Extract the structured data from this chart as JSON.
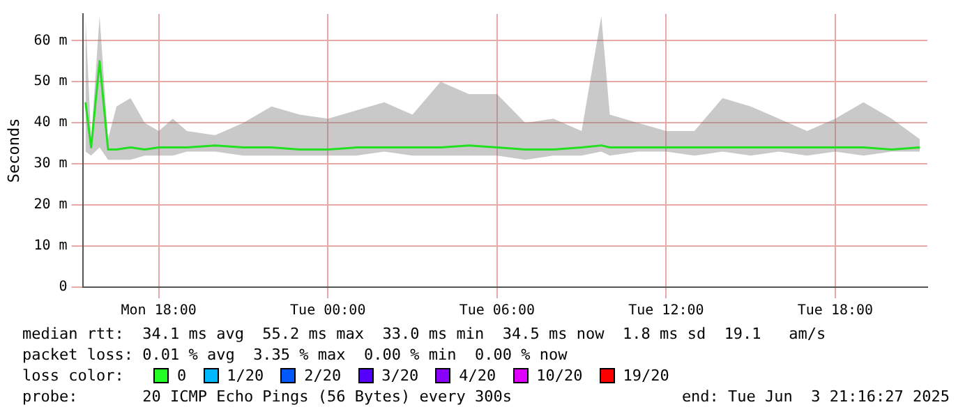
{
  "chart_data": {
    "type": "line",
    "ylabel": "Seconds",
    "xlim": [
      "2025-06-02T15:18",
      "2025-06-03T21:16"
    ],
    "xticks": [
      {
        "value": "2025-06-02T18:00",
        "label": "Mon 18:00"
      },
      {
        "value": "2025-06-03T00:00",
        "label": "Tue 00:00"
      },
      {
        "value": "2025-06-03T06:00",
        "label": "Tue 06:00"
      },
      {
        "value": "2025-06-03T12:00",
        "label": "Tue 12:00"
      },
      {
        "value": "2025-06-03T18:00",
        "label": "Tue 18:00"
      }
    ],
    "ylim": [
      0,
      66.5
    ],
    "yticks": [
      0,
      {
        "value": 10,
        "label": "10 m"
      },
      {
        "value": 20,
        "label": "20 m"
      },
      {
        "value": 30,
        "label": "30 m"
      },
      {
        "value": 40,
        "label": "40 m"
      },
      {
        "value": 50,
        "label": "50 m"
      },
      {
        "value": 60,
        "label": "60 m"
      }
    ],
    "grid": true,
    "legend": false,
    "marker": "none",
    "line_style": "solid",
    "series": [
      {
        "color": "#22e01f",
        "x": [
          "2025-06-02T15:24",
          "2025-06-02T15:36",
          "2025-06-02T15:54",
          "2025-06-02T16:12",
          "2025-06-02T16:30",
          "2025-06-02T17:00",
          "2025-06-02T17:30",
          "2025-06-02T18:00",
          "2025-06-02T18:30",
          "2025-06-02T19:00",
          "2025-06-02T20:00",
          "2025-06-02T21:00",
          "2025-06-02T22:00",
          "2025-06-02T23:00",
          "2025-06-03T00:00",
          "2025-06-03T01:00",
          "2025-06-03T02:00",
          "2025-06-03T03:00",
          "2025-06-03T04:00",
          "2025-06-03T05:00",
          "2025-06-03T06:00",
          "2025-06-03T07:00",
          "2025-06-03T08:00",
          "2025-06-03T09:00",
          "2025-06-03T09:42",
          "2025-06-03T10:00",
          "2025-06-03T11:00",
          "2025-06-03T12:00",
          "2025-06-03T13:00",
          "2025-06-03T14:00",
          "2025-06-03T15:00",
          "2025-06-03T16:00",
          "2025-06-03T17:00",
          "2025-06-03T18:00",
          "2025-06-03T19:00",
          "2025-06-03T20:00",
          "2025-06-03T21:00"
        ],
        "values": [
          45,
          34,
          55,
          33.5,
          33.5,
          34,
          33.5,
          34,
          34,
          34,
          34.5,
          34,
          34,
          33.5,
          33.5,
          34,
          34,
          34,
          34,
          34.5,
          34,
          33.5,
          33.5,
          34,
          34.5,
          34,
          34,
          34,
          34,
          34,
          34,
          34,
          34,
          34,
          34,
          33.5,
          34
        ],
        "lower": [
          33,
          32,
          34,
          31,
          31,
          31,
          32,
          32,
          32,
          33,
          33,
          32,
          32,
          32,
          32,
          32,
          33,
          32,
          32,
          32,
          32,
          31,
          32,
          32,
          33,
          32,
          33,
          33,
          32,
          33,
          32,
          33,
          32,
          33,
          32,
          33,
          33
        ],
        "upper": [
          66,
          36,
          66,
          36,
          44,
          46,
          40,
          38,
          41,
          38,
          37,
          40,
          44,
          42,
          41,
          43,
          45,
          42,
          50,
          47,
          47,
          40,
          41,
          38,
          66,
          42,
          40,
          38,
          38,
          46,
          44,
          41,
          38,
          41,
          45,
          41,
          36
        ]
      }
    ],
    "annotations": [
      "median rtt:  34.1 ms avg  55.2 ms max  33.0 ms min  34.5 ms now  1.8 ms sd  19.1   am/s",
      "packet loss: 0.01 % avg  3.35 % max  0.00 % min  0.00 % now",
      "loss color:",
      "0",
      "1/20",
      "2/20",
      "3/20",
      "4/20",
      "10/20",
      "19/20",
      "probe:       20 ICMP Echo Pings (56 Bytes) every 300s",
      "end: Tue Jun  3 21:16:27 2025"
    ]
  }
}
